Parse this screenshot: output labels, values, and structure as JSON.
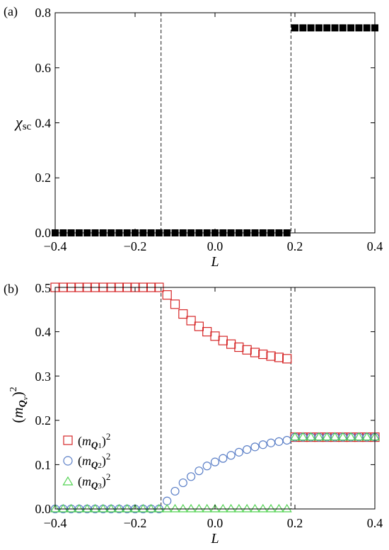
{
  "chart_data": [
    {
      "panel": "(a)",
      "type": "scatter",
      "xlabel": "L",
      "ylabel": "χsc",
      "xlim": [
        -0.4,
        0.4
      ],
      "ylim": [
        0.0,
        0.8
      ],
      "xticks": [
        "−0.4",
        "−0.2",
        "0.0",
        "0.2",
        "0.4"
      ],
      "yticks": [
        "0.0",
        "0.2",
        "0.4",
        "0.6",
        "0.8"
      ],
      "vlines": [
        -0.135,
        0.19
      ],
      "grid": false,
      "series": [
        {
          "marker": "filled-square",
          "color": "#000000",
          "x": [
            -0.4,
            -0.38,
            -0.36,
            -0.34,
            -0.32,
            -0.3,
            -0.28,
            -0.26,
            -0.24,
            -0.22,
            -0.2,
            -0.18,
            -0.16,
            -0.14,
            -0.12,
            -0.1,
            -0.08,
            -0.06,
            -0.04,
            -0.02,
            0.0,
            0.02,
            0.04,
            0.06,
            0.08,
            0.1,
            0.12,
            0.14,
            0.16,
            0.18,
            0.2,
            0.22,
            0.24,
            0.26,
            0.28,
            0.3,
            0.32,
            0.34,
            0.36,
            0.38,
            0.4
          ],
          "y": [
            0,
            0,
            0,
            0,
            0,
            0,
            0,
            0,
            0,
            0,
            0,
            0,
            0,
            0,
            0,
            0,
            0,
            0,
            0,
            0,
            0,
            0,
            0,
            0,
            0,
            0,
            0,
            0,
            0,
            0,
            0.745,
            0.745,
            0.745,
            0.745,
            0.745,
            0.745,
            0.745,
            0.745,
            0.745,
            0.745,
            0.745
          ]
        }
      ]
    },
    {
      "panel": "(b)",
      "type": "scatter",
      "xlabel": "L",
      "xlim": [
        -0.4,
        0.4
      ],
      "ylim": [
        0.0,
        0.5
      ],
      "xticks": [
        "−0.4",
        "−0.2",
        "0.0",
        "0.2",
        "0.4"
      ],
      "yticks": [
        "0.0",
        "0.1",
        "0.2",
        "0.3",
        "0.4",
        "0.5"
      ],
      "vlines": [
        -0.135,
        0.19
      ],
      "legend_position": "lower-left",
      "grid": false,
      "series": [
        {
          "name": "Q1",
          "marker": "open-square",
          "color": "#d62728",
          "x": [
            -0.4,
            -0.38,
            -0.36,
            -0.34,
            -0.32,
            -0.3,
            -0.28,
            -0.26,
            -0.24,
            -0.22,
            -0.2,
            -0.18,
            -0.16,
            -0.14,
            -0.12,
            -0.1,
            -0.08,
            -0.06,
            -0.04,
            -0.02,
            0.0,
            0.02,
            0.04,
            0.06,
            0.08,
            0.1,
            0.12,
            0.14,
            0.16,
            0.18,
            0.2,
            0.22,
            0.24,
            0.26,
            0.28,
            0.3,
            0.32,
            0.34,
            0.36,
            0.38,
            0.4
          ],
          "y": [
            0.5,
            0.5,
            0.5,
            0.5,
            0.5,
            0.5,
            0.5,
            0.5,
            0.5,
            0.5,
            0.5,
            0.5,
            0.5,
            0.5,
            0.483,
            0.462,
            0.44,
            0.425,
            0.412,
            0.4,
            0.39,
            0.38,
            0.372,
            0.365,
            0.359,
            0.353,
            0.349,
            0.345,
            0.342,
            0.339,
            0.162,
            0.162,
            0.162,
            0.162,
            0.162,
            0.162,
            0.162,
            0.162,
            0.162,
            0.162,
            0.162
          ]
        },
        {
          "name": "Q2",
          "marker": "open-circle",
          "color": "#5b7fc7",
          "x": [
            -0.4,
            -0.38,
            -0.36,
            -0.34,
            -0.32,
            -0.3,
            -0.28,
            -0.26,
            -0.24,
            -0.22,
            -0.2,
            -0.18,
            -0.16,
            -0.14,
            -0.12,
            -0.1,
            -0.08,
            -0.06,
            -0.04,
            -0.02,
            0.0,
            0.02,
            0.04,
            0.06,
            0.08,
            0.1,
            0.12,
            0.14,
            0.16,
            0.18,
            0.2,
            0.22,
            0.24,
            0.26,
            0.28,
            0.3,
            0.32,
            0.34,
            0.36,
            0.38,
            0.4
          ],
          "y": [
            0,
            0,
            0,
            0,
            0,
            0,
            0,
            0,
            0,
            0,
            0,
            0,
            0,
            0,
            0.018,
            0.04,
            0.059,
            0.073,
            0.086,
            0.097,
            0.106,
            0.114,
            0.121,
            0.128,
            0.134,
            0.14,
            0.145,
            0.149,
            0.152,
            0.155,
            0.162,
            0.162,
            0.162,
            0.162,
            0.162,
            0.162,
            0.162,
            0.162,
            0.162,
            0.162,
            0.162
          ]
        },
        {
          "name": "Q3",
          "marker": "open-triangle",
          "color": "#4fd24f",
          "x": [
            -0.4,
            -0.38,
            -0.36,
            -0.34,
            -0.32,
            -0.3,
            -0.28,
            -0.26,
            -0.24,
            -0.22,
            -0.2,
            -0.18,
            -0.16,
            -0.14,
            -0.12,
            -0.1,
            -0.08,
            -0.06,
            -0.04,
            -0.02,
            0.0,
            0.02,
            0.04,
            0.06,
            0.08,
            0.1,
            0.12,
            0.14,
            0.16,
            0.18,
            0.2,
            0.22,
            0.24,
            0.26,
            0.28,
            0.3,
            0.32,
            0.34,
            0.36,
            0.38,
            0.4
          ],
          "y": [
            0,
            0,
            0,
            0,
            0,
            0,
            0,
            0,
            0,
            0,
            0,
            0,
            0,
            0,
            0,
            0,
            0,
            0,
            0,
            0,
            0,
            0,
            0,
            0,
            0,
            0,
            0,
            0,
            0,
            0,
            0.162,
            0.162,
            0.162,
            0.162,
            0.162,
            0.162,
            0.162,
            0.162,
            0.162,
            0.162,
            0.162
          ]
        }
      ]
    }
  ]
}
